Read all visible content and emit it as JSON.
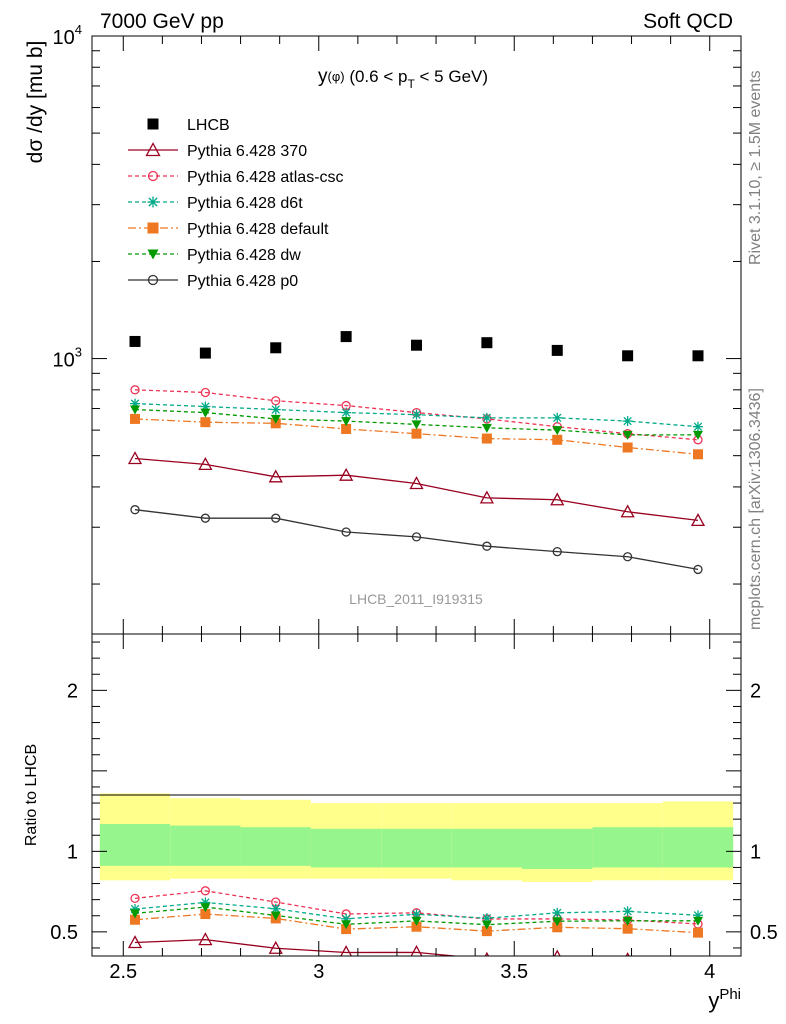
{
  "header": {
    "left": "7000 GeV pp",
    "right": "Soft QCD"
  },
  "side": {
    "rivet": "Rivet 3.1.10, ≥ 1.5M events",
    "source": "mcplots.cern.ch [arXiv:1306.3436]"
  },
  "chart_data": {
    "type": "line",
    "title": "y(φ) (0.6 < p_T < 5 GeV)",
    "title_parts": {
      "a": "y",
      "b": "(φ)",
      "c": " (0.6 < p",
      "d": "T",
      "e": " < 5 GeV)"
    },
    "watermark": "LHCB_2011_I919315",
    "xlabel": "y^Phi",
    "xlabel_parts": {
      "base": "y",
      "sup": "Phi"
    },
    "ylabel": "dσ /dy [mu b]",
    "ratio_ylabel": "Ratio to LHCB",
    "xlim": [
      2.42,
      4.08
    ],
    "ylim": [
      140,
      10000
    ],
    "ylog": true,
    "ratio_ylim": [
      0.35,
      2.35
    ],
    "x_ticks": [
      "2.5",
      "3",
      "3.5",
      "4"
    ],
    "y_ticks": [
      {
        "base": "10",
        "exp": "3",
        "value": 1000
      },
      {
        "base": "10",
        "exp": "4",
        "value": 10000
      }
    ],
    "ratio_ticks": [
      "0.5",
      "1",
      "2"
    ],
    "x": [
      2.53,
      2.71,
      2.89,
      3.07,
      3.25,
      3.43,
      3.61,
      3.79,
      3.97
    ],
    "series": [
      {
        "name": "LHCB",
        "color": "#000000",
        "dash": "",
        "marker": "square",
        "line": false,
        "values": [
          1130,
          1040,
          1080,
          1170,
          1100,
          1120,
          1060,
          1020,
          1020
        ]
      },
      {
        "name": "Pythia 6.428 370",
        "color": "#990020",
        "dash": "",
        "marker": "triangle",
        "line": true,
        "values": [
          490,
          470,
          430,
          435,
          410,
          370,
          365,
          335,
          315
        ]
      },
      {
        "name": "Pythia 6.428 atlas-csc",
        "color": "#ee3355",
        "dash": "4,3",
        "marker": "circle-open",
        "line": true,
        "values": [
          800,
          785,
          740,
          715,
          680,
          650,
          615,
          585,
          560
        ]
      },
      {
        "name": "Pythia 6.428 d6t",
        "color": "#00aa88",
        "dash": "4,3",
        "marker": "star",
        "line": true,
        "values": [
          725,
          710,
          695,
          680,
          670,
          655,
          655,
          640,
          615
        ]
      },
      {
        "name": "Pythia 6.428 default",
        "color": "#ee7722",
        "dash": "8,3,2,3",
        "marker": "square",
        "line": true,
        "values": [
          650,
          635,
          630,
          605,
          585,
          565,
          560,
          530,
          505
        ]
      },
      {
        "name": "Pythia 6.428 dw",
        "color": "#009900",
        "dash": "4,3",
        "marker": "triangle-down",
        "line": true,
        "values": [
          695,
          680,
          650,
          640,
          625,
          610,
          600,
          580,
          580
        ]
      },
      {
        "name": "Pythia 6.428 p0",
        "color": "#333333",
        "dash": "",
        "marker": "circle-open",
        "line": true,
        "values": [
          340,
          320,
          320,
          290,
          280,
          262,
          252,
          243,
          222
        ]
      }
    ],
    "ratio_bands": {
      "edges": [
        2.44,
        2.62,
        2.8,
        2.98,
        3.16,
        3.34,
        3.52,
        3.7,
        3.88,
        4.06
      ],
      "outer_color": "#ffff8c",
      "inner_color": "#96f58c",
      "outer_lo": [
        0.82,
        0.83,
        0.83,
        0.83,
        0.83,
        0.82,
        0.81,
        0.82,
        0.82
      ],
      "outer_hi": [
        1.36,
        1.33,
        1.32,
        1.3,
        1.3,
        1.3,
        1.3,
        1.3,
        1.31
      ],
      "inner_lo": [
        0.91,
        0.91,
        0.91,
        0.9,
        0.9,
        0.9,
        0.89,
        0.9,
        0.9
      ],
      "inner_hi": [
        1.17,
        1.16,
        1.15,
        1.14,
        1.14,
        1.14,
        1.14,
        1.15,
        1.15
      ]
    }
  }
}
